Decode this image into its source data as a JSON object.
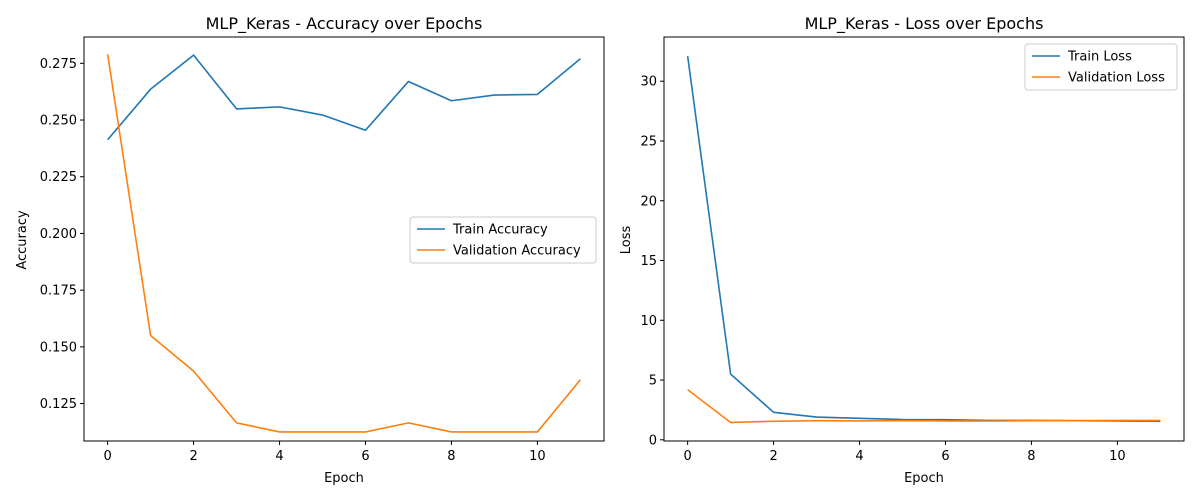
{
  "chart_data": [
    {
      "type": "line",
      "title": "MLP_Keras - Accuracy over Epochs",
      "xlabel": "Epoch",
      "ylabel": "Accuracy",
      "xlim": [
        -0.55,
        11.55
      ],
      "ylim": [
        0.1085,
        0.2866
      ],
      "xticks": [
        0,
        2,
        4,
        6,
        8,
        10
      ],
      "yticks": [
        0.125,
        0.15,
        0.175,
        0.2,
        0.225,
        0.25,
        0.275
      ],
      "ytick_labels": [
        "0.125",
        "0.150",
        "0.175",
        "0.200",
        "0.225",
        "0.250",
        "0.275"
      ],
      "legend_position": "center-right",
      "grid": false,
      "x": [
        0,
        1,
        2,
        3,
        4,
        5,
        6,
        7,
        8,
        9,
        10,
        11
      ],
      "series": [
        {
          "name": "Train Accuracy",
          "color": "#1f77b4",
          "values": [
            0.2413,
            0.2636,
            0.2786,
            0.2549,
            0.2558,
            0.2522,
            0.2455,
            0.267,
            0.2585,
            0.261,
            0.2613,
            0.277
          ]
        },
        {
          "name": "Validation Accuracy",
          "color": "#ff7f0e",
          "values": [
            0.279,
            0.155,
            0.1393,
            0.1165,
            0.1125,
            0.1125,
            0.1125,
            0.1165,
            0.1125,
            0.1125,
            0.1125,
            0.1355
          ]
        }
      ]
    },
    {
      "type": "line",
      "title": "MLP_Keras - Loss over Epochs",
      "xlabel": "Epoch",
      "ylabel": "Loss",
      "xlim": [
        -0.55,
        11.55
      ],
      "ylim": [
        -0.1,
        33.7
      ],
      "xticks": [
        0,
        2,
        4,
        6,
        8,
        10
      ],
      "yticks": [
        0,
        5,
        10,
        15,
        20,
        25,
        30
      ],
      "ytick_labels": [
        "0",
        "5",
        "10",
        "15",
        "20",
        "25",
        "30"
      ],
      "legend_position": "top-right",
      "grid": false,
      "x": [
        0,
        1,
        2,
        3,
        4,
        5,
        6,
        7,
        8,
        9,
        10,
        11
      ],
      "series": [
        {
          "name": "Train Loss",
          "color": "#1f77b4",
          "values": [
            32.1,
            5.5,
            2.3,
            1.9,
            1.8,
            1.7,
            1.68,
            1.62,
            1.62,
            1.6,
            1.58,
            1.55
          ]
        },
        {
          "name": "Validation Loss",
          "color": "#ff7f0e",
          "values": [
            4.2,
            1.45,
            1.55,
            1.6,
            1.58,
            1.6,
            1.58,
            1.57,
            1.6,
            1.6,
            1.62,
            1.62
          ]
        }
      ]
    }
  ]
}
